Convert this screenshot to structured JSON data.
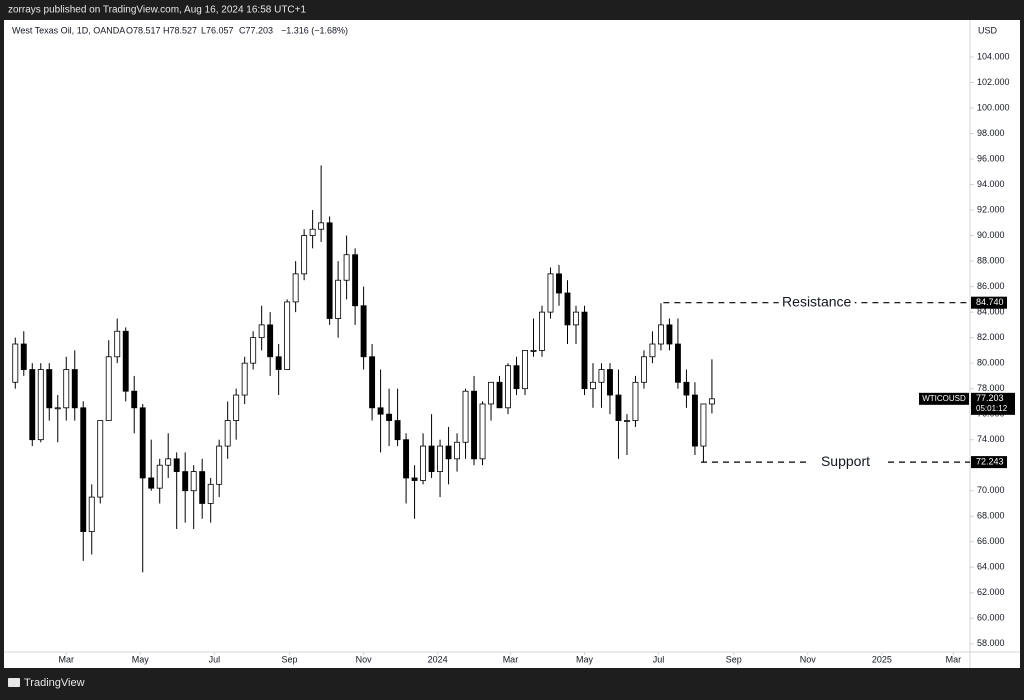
{
  "header": "zorrays published on TradingView.com, Aug 16, 2024 16:58 UTC+1",
  "footer": "TradingView",
  "chart_data": {
    "type": "candlestick",
    "legend": {
      "symbol": "West Texas Oil, 1D, OANDA",
      "open": "O78.517",
      "high": "H78.527",
      "low": "L76.057",
      "close": "C77.203",
      "change": "−1.316 (−1.68%)"
    },
    "currency": "USD",
    "x": [
      "2023-01-16",
      "2023-01-23",
      "2023-01-30",
      "2023-02-06",
      "2023-02-13",
      "2023-02-20",
      "2023-02-27",
      "2023-03-06",
      "2023-03-13",
      "2023-03-20",
      "2023-03-27",
      "2023-04-03",
      "2023-04-10",
      "2023-04-17",
      "2023-04-24",
      "2023-05-01",
      "2023-05-08",
      "2023-05-15",
      "2023-05-22",
      "2023-05-29",
      "2023-06-05",
      "2023-06-12",
      "2023-06-19",
      "2023-06-26",
      "2023-07-03",
      "2023-07-10",
      "2023-07-17",
      "2023-07-24",
      "2023-07-31",
      "2023-08-07",
      "2023-08-14",
      "2023-08-21",
      "2023-08-28",
      "2023-09-04",
      "2023-09-11",
      "2023-09-18",
      "2023-09-25",
      "2023-10-02",
      "2023-10-09",
      "2023-10-16",
      "2023-10-23",
      "2023-10-30",
      "2023-11-06",
      "2023-11-13",
      "2023-11-20",
      "2023-11-27",
      "2023-12-04",
      "2023-12-11",
      "2023-12-18",
      "2023-12-25",
      "2024-01-01",
      "2024-01-08",
      "2024-01-15",
      "2024-01-22",
      "2024-01-29",
      "2024-02-05",
      "2024-02-12",
      "2024-02-19",
      "2024-02-26",
      "2024-03-04",
      "2024-03-11",
      "2024-03-18",
      "2024-03-25",
      "2024-04-01",
      "2024-04-08",
      "2024-04-15",
      "2024-04-22",
      "2024-04-29",
      "2024-05-06",
      "2024-05-13",
      "2024-05-20",
      "2024-05-27",
      "2024-06-03",
      "2024-06-10",
      "2024-06-17",
      "2024-06-24",
      "2024-07-01",
      "2024-07-08",
      "2024-07-15",
      "2024-07-22",
      "2024-07-29",
      "2024-08-05",
      "2024-08-12"
    ],
    "open": [
      78.5,
      81.5,
      79.5,
      74.0,
      79.5,
      76.5,
      76.5,
      79.5,
      76.5,
      66.8,
      69.5,
      75.5,
      80.5,
      82.5,
      77.8,
      76.5,
      71.0,
      70.2,
      72.0,
      72.5,
      71.5,
      70.0,
      71.5,
      69.0,
      70.5,
      73.5,
      75.5,
      77.5,
      80.0,
      82.0,
      83.0,
      80.5,
      79.5,
      84.8,
      87.0,
      90.0,
      90.5,
      91.0,
      83.5,
      86.5,
      88.5,
      84.5,
      80.5,
      76.5,
      76.0,
      75.5,
      74.0,
      71.0,
      70.8,
      73.5,
      71.5,
      73.5,
      72.5,
      73.8,
      77.8,
      72.5,
      76.8,
      78.5,
      76.5,
      79.8,
      78.0,
      81.0,
      81.0,
      84.0,
      87.0,
      85.5,
      83.0,
      84.0,
      78.0,
      78.5,
      79.5,
      77.5,
      75.5,
      75.5,
      78.5,
      80.5,
      81.5,
      83.0,
      81.5,
      78.5,
      77.5,
      73.5,
      76.8
    ],
    "high": [
      82.0,
      82.5,
      80.0,
      80.0,
      80.0,
      77.5,
      80.5,
      81.0,
      77.0,
      70.5,
      75.5,
      81.8,
      83.5,
      82.8,
      79.0,
      76.8,
      74.0,
      72.5,
      74.5,
      73.0,
      73.0,
      72.0,
      72.5,
      71.0,
      74.0,
      77.0,
      78.0,
      80.5,
      82.5,
      84.5,
      84.0,
      81.5,
      85.0,
      88.0,
      90.5,
      92.0,
      95.5,
      91.5,
      88.0,
      90.0,
      89.0,
      86.0,
      81.5,
      79.5,
      78.0,
      78.0,
      74.5,
      72.0,
      74.5,
      76.0,
      74.0,
      75.0,
      74.5,
      78.0,
      79.0,
      77.0,
      78.5,
      79.0,
      80.0,
      80.5,
      81.0,
      83.5,
      84.5,
      87.5,
      87.7,
      86.5,
      84.5,
      84.5,
      80.0,
      80.0,
      80.0,
      79.5,
      76.0,
      79.0,
      81.0,
      82.5,
      84.7,
      83.5,
      83.5,
      79.5,
      78.5,
      76.5,
      80.3
    ],
    "low": [
      78.0,
      79.0,
      73.5,
      73.8,
      75.5,
      73.8,
      75.5,
      75.5,
      64.5,
      65.0,
      69.0,
      75.5,
      80.0,
      77.0,
      74.5,
      63.6,
      70.0,
      69.0,
      71.0,
      67.0,
      67.5,
      67.0,
      67.8,
      67.5,
      69.5,
      72.5,
      74.0,
      76.8,
      79.5,
      81.0,
      79.0,
      77.5,
      79.5,
      84.0,
      86.5,
      89.0,
      89.5,
      83.0,
      82.0,
      85.0,
      83.0,
      79.5,
      75.5,
      73.0,
      73.5,
      73.5,
      69.0,
      67.8,
      70.5,
      71.0,
      69.5,
      70.5,
      71.5,
      72.5,
      72.0,
      72.0,
      75.5,
      76.5,
      76.0,
      77.5,
      77.5,
      80.5,
      80.5,
      83.5,
      84.5,
      81.5,
      81.5,
      77.5,
      76.5,
      76.5,
      76.0,
      72.5,
      72.8,
      75.0,
      78.0,
      80.0,
      81.0,
      81.0,
      78.0,
      76.5,
      72.8,
      72.243,
      76.057
    ],
    "close": [
      81.5,
      79.5,
      74.0,
      79.5,
      76.5,
      76.5,
      79.5,
      76.5,
      66.8,
      69.5,
      75.5,
      80.5,
      82.5,
      77.8,
      76.5,
      71.0,
      70.2,
      72.0,
      72.5,
      71.5,
      70.0,
      71.5,
      69.0,
      70.5,
      73.5,
      75.5,
      77.5,
      80.0,
      82.0,
      83.0,
      80.5,
      79.5,
      84.8,
      87.0,
      90.0,
      90.5,
      91.0,
      83.5,
      86.5,
      88.5,
      84.5,
      80.5,
      76.5,
      76.0,
      75.5,
      74.0,
      71.0,
      70.8,
      73.5,
      71.5,
      73.5,
      72.5,
      73.8,
      77.8,
      72.5,
      76.8,
      78.5,
      76.5,
      79.8,
      78.0,
      81.0,
      81.0,
      84.0,
      87.0,
      85.5,
      83.0,
      84.0,
      78.0,
      78.5,
      79.5,
      77.5,
      75.5,
      75.5,
      78.5,
      80.5,
      81.5,
      83.0,
      81.5,
      78.5,
      77.5,
      73.5,
      76.8,
      77.203
    ],
    "colors": {
      "up": "#ffffff",
      "down": "#000000",
      "border": "#000000"
    },
    "xlim": [
      "2023-01-12",
      "2025-03-13"
    ],
    "xticks": [
      {
        "value": "2023-03-01",
        "label": "Mar"
      },
      {
        "value": "2023-05-01",
        "label": "May"
      },
      {
        "value": "2023-07-01",
        "label": "Jul"
      },
      {
        "value": "2023-09-01",
        "label": "Sep"
      },
      {
        "value": "2023-11-01",
        "label": "Nov"
      },
      {
        "value": "2024-01-01",
        "label": "2024"
      },
      {
        "value": "2024-03-01",
        "label": "Mar"
      },
      {
        "value": "2024-05-01",
        "label": "May"
      },
      {
        "value": "2024-07-01",
        "label": "Jul"
      },
      {
        "value": "2024-09-01",
        "label": "Sep"
      },
      {
        "value": "2024-11-01",
        "label": "Nov"
      },
      {
        "value": "2025-01-01",
        "label": "2025"
      },
      {
        "value": "2025-03-01",
        "label": "Mar"
      }
    ],
    "ylim": [
      57.2,
      106.9
    ],
    "yticks": [
      {
        "value": 58,
        "label": "58.000"
      },
      {
        "value": 60,
        "label": "60.000"
      },
      {
        "value": 62,
        "label": "62.000"
      },
      {
        "value": 64,
        "label": "64.000"
      },
      {
        "value": 66,
        "label": "66.000"
      },
      {
        "value": 68,
        "label": "68.000"
      },
      {
        "value": 70,
        "label": "70.000"
      },
      {
        "value": 72,
        "label": "72.000"
      },
      {
        "value": 74,
        "label": "74.000"
      },
      {
        "value": 76,
        "label": "76.000"
      },
      {
        "value": 78,
        "label": "78.000"
      },
      {
        "value": 80,
        "label": "80.000"
      },
      {
        "value": 82,
        "label": "82.000"
      },
      {
        "value": 84,
        "label": "84.000"
      },
      {
        "value": 86,
        "label": "86.000"
      },
      {
        "value": 88,
        "label": "88.000"
      },
      {
        "value": 90,
        "label": "90.000"
      },
      {
        "value": 92,
        "label": "92.000"
      },
      {
        "value": 94,
        "label": "94.000"
      },
      {
        "value": 96,
        "label": "96.000"
      },
      {
        "value": 98,
        "label": "98.000"
      },
      {
        "value": 100,
        "label": "100.000"
      },
      {
        "value": 102,
        "label": "102.000"
      },
      {
        "value": 104,
        "label": "104.000"
      }
    ],
    "grid": false,
    "levels": [
      {
        "name": "Resistance",
        "start": "2024-07-05",
        "value": 84.74,
        "label": "84.740"
      },
      {
        "name": "Support",
        "start": "2024-08-05",
        "value": 72.243,
        "label": "72.243"
      }
    ],
    "last_price": {
      "symbol": "WTICOUSD",
      "value": 77.203,
      "label": "77.203",
      "countdown": "05:01:12"
    }
  }
}
